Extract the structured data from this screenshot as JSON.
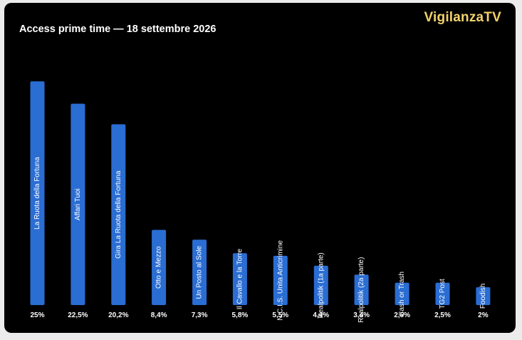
{
  "header": {
    "brand": "VigilanzaTV"
  },
  "colors": {
    "background": "#000000",
    "bar": "#2a6dd3",
    "brand": "#f2d26b",
    "text": "#ffffff"
  },
  "chart_data": {
    "type": "bar",
    "title": "Access prime time — 18 settembre 2026",
    "xlabel": "",
    "ylabel": "",
    "ylim": [
      0,
      27
    ],
    "grid": false,
    "legend": "none",
    "categories": [
      "La Ruota della Fortuna",
      "Affari Tuoi",
      "Gira La Ruota della Fortuna",
      "Otto e Mezzo",
      "Un Posto al Sole",
      "Il Cavallo e la Torre",
      "N.C.I.S. Unita Anticrimine",
      "Realpolitik (1a parte)",
      "Realpolitik (2a parte)",
      "Cash or Trash",
      "TG2 Post",
      "Foodish"
    ],
    "values": [
      25,
      22.5,
      20.2,
      8.4,
      7.3,
      5.8,
      5.5,
      4.4,
      3.4,
      2.5,
      2.5,
      2
    ],
    "value_labels": [
      "25%",
      "22,5%",
      "20,2%",
      "8,4%",
      "7,3%",
      "5,8%",
      "5,5%",
      "4,4%",
      "3,4%",
      "2,5%",
      "2,5%",
      "2%"
    ]
  }
}
